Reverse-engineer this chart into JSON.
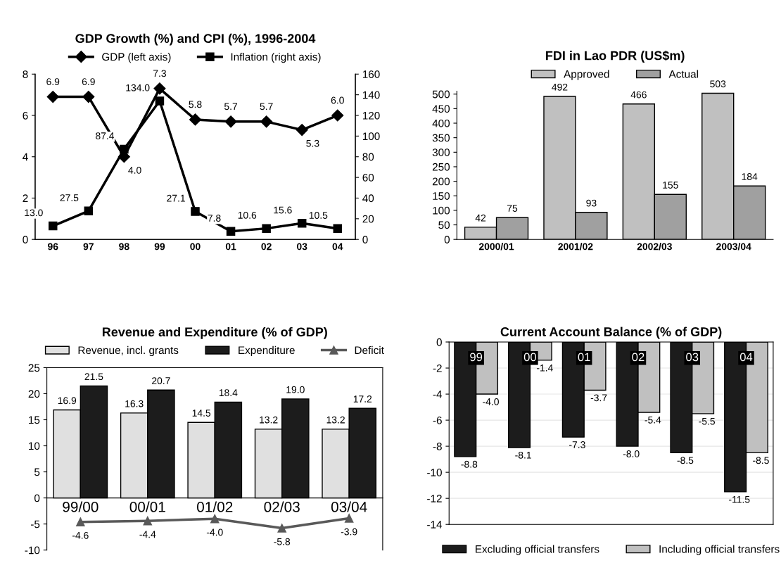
{
  "chart_data": [
    {
      "type": "line",
      "title": "GDP Growth (%) and CPI (%), 1996-2004",
      "categories": [
        "96",
        "97",
        "98",
        "99",
        "00",
        "01",
        "02",
        "03",
        "04"
      ],
      "ylim": [
        0,
        8
      ],
      "yticks": [
        0,
        2,
        4,
        6,
        8
      ],
      "y2lim": [
        0,
        160
      ],
      "y2ticks": [
        0,
        20,
        40,
        60,
        80,
        100,
        120,
        140,
        160
      ],
      "legend": "top",
      "series": [
        {
          "name": "GDP (left axis)",
          "color": "#000000",
          "marker": "diamond",
          "values": [
            6.9,
            6.9,
            4.0,
            7.3,
            5.8,
            5.7,
            5.7,
            5.3,
            6.0
          ],
          "value_labels": [
            "6.9",
            "6.9",
            "4.0",
            "7.3",
            "5.8",
            "5.7",
            "5.7",
            "5.3",
            "6.0"
          ]
        },
        {
          "name": "Inflation (right axis)",
          "color": "#000000",
          "marker": "square",
          "axis": "y2",
          "values": [
            13.0,
            27.5,
            87.4,
            134.0,
            27.1,
            7.8,
            10.6,
            15.6,
            10.5
          ],
          "value_labels": [
            "13.0",
            "27.5",
            "87.4",
            "134.0",
            "27.1",
            "7.8",
            "10.6",
            "15.6",
            "10.5"
          ]
        }
      ]
    },
    {
      "type": "bar",
      "title": "FDI in Lao PDR (US$m)",
      "categories": [
        "2000/01",
        "2001/02",
        "2002/03",
        "2003/04"
      ],
      "ylim": [
        0,
        510
      ],
      "yticks": [
        0,
        50,
        100,
        150,
        200,
        250,
        300,
        350,
        400,
        450,
        500
      ],
      "legend": "top",
      "series": [
        {
          "name": "Approved",
          "color": "#c0c0c0",
          "values": [
            42,
            492,
            466,
            503
          ],
          "value_labels": [
            "42",
            "492",
            "466",
            "503"
          ]
        },
        {
          "name": "Actual",
          "color": "#a0a0a0",
          "values": [
            75,
            93,
            155,
            184
          ],
          "value_labels": [
            "75",
            "93",
            "155",
            "184"
          ]
        }
      ]
    },
    {
      "type": "bar",
      "title": "Revenue and Expenditure (% of GDP)",
      "categories": [
        "99/00",
        "00/01",
        "01/02",
        "02/03",
        "03/04"
      ],
      "ylim": [
        -10,
        25
      ],
      "yticks": [
        -10,
        -5,
        0,
        5,
        10,
        15,
        20,
        25
      ],
      "legend": "top",
      "series": [
        {
          "name": "Revenue, incl. grants",
          "color": "#e0e0e0",
          "values": [
            16.9,
            16.3,
            14.5,
            13.2,
            13.2
          ],
          "value_labels": [
            "16.9",
            "16.3",
            "14.5",
            "13.2",
            "13.2"
          ]
        },
        {
          "name": "Expenditure",
          "color": "#1c1c1c",
          "values": [
            21.5,
            20.7,
            18.4,
            19.0,
            17.2
          ],
          "value_labels": [
            "21.5",
            "20.7",
            "18.4",
            "19.0",
            "17.2"
          ]
        },
        {
          "name": "Deficit",
          "type": "line",
          "marker": "triangle",
          "color": "#595959",
          "values": [
            -4.6,
            -4.4,
            -4.0,
            -5.8,
            -3.9
          ],
          "value_labels": [
            "-4.6",
            "-4.4",
            "-4.0",
            "-5.8",
            "-3.9"
          ]
        }
      ]
    },
    {
      "type": "bar",
      "title": "Current Account Balance (% of GDP)",
      "categories": [
        "99",
        "00",
        "01",
        "02",
        "03",
        "04"
      ],
      "ylim": [
        -14,
        0
      ],
      "yticks": [
        -14,
        -12,
        -10,
        -8,
        -6,
        -4,
        -2,
        0
      ],
      "legend": "bottom",
      "grid": "y",
      "series": [
        {
          "name": "Excluding official transfers",
          "color": "#1c1c1c",
          "values": [
            -8.8,
            -8.1,
            -7.3,
            -8.0,
            -8.5,
            -11.5
          ],
          "value_labels": [
            "-8.8",
            "-8.1",
            "-7.3",
            "-8.0",
            "-8.5",
            "-11.5"
          ]
        },
        {
          "name": "Including official transfers",
          "color": "#c0c0c0",
          "values": [
            -4.0,
            -1.4,
            -3.7,
            -5.4,
            -5.5,
            -8.5
          ],
          "value_labels": [
            "-4.0",
            "-1.4",
            "-3.7",
            "-5.4",
            "-5.5",
            "-8.5"
          ]
        }
      ]
    }
  ]
}
